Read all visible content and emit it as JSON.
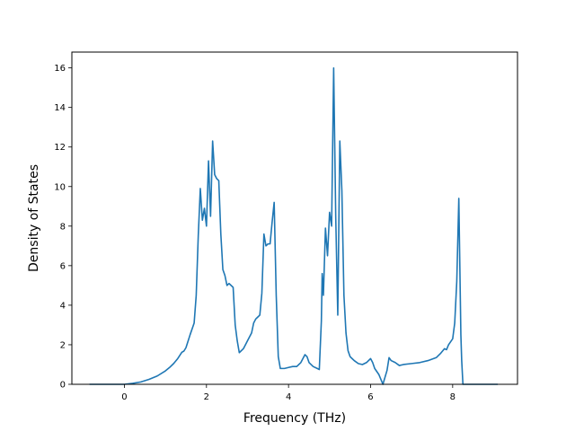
{
  "chart_data": {
    "type": "line",
    "title": "",
    "xlabel": "Frequency (THz)",
    "ylabel": "Density of States",
    "xlim": [
      -1.28,
      9.58
    ],
    "ylim": [
      0,
      16.8
    ],
    "xticks": [
      0,
      2,
      4,
      6,
      8
    ],
    "yticks": [
      0,
      2,
      4,
      6,
      8,
      10,
      12,
      14,
      16
    ],
    "grid": false,
    "legend": "none",
    "line_color": "#1f77b4",
    "series": [
      {
        "x": [
          -0.85,
          -0.5,
          -0.2,
          0.0,
          0.2,
          0.4,
          0.6,
          0.8,
          1.0,
          1.1,
          1.2,
          1.3,
          1.4,
          1.45,
          1.5,
          1.6,
          1.7,
          1.75,
          1.8,
          1.85,
          1.9,
          1.95,
          2.0,
          2.05,
          2.1,
          2.15,
          2.2,
          2.25,
          2.3,
          2.35,
          2.4,
          2.45,
          2.5,
          2.55,
          2.6,
          2.65,
          2.7,
          2.75,
          2.8,
          2.9,
          3.0,
          3.1,
          3.15,
          3.2,
          3.25,
          3.3,
          3.35,
          3.4,
          3.45,
          3.5,
          3.55,
          3.6,
          3.65,
          3.7,
          3.75,
          3.8,
          3.9,
          4.0,
          4.1,
          4.2,
          4.3,
          4.4,
          4.45,
          4.5,
          4.6,
          4.7,
          4.75,
          4.8,
          4.82,
          4.85,
          4.9,
          4.95,
          5.0,
          5.05,
          5.1,
          5.15,
          5.2,
          5.25,
          5.3,
          5.35,
          5.4,
          5.45,
          5.5,
          5.55,
          5.6,
          5.7,
          5.8,
          5.9,
          6.0,
          6.05,
          6.1,
          6.2,
          6.3,
          6.4,
          6.45,
          6.5,
          6.6,
          6.7,
          6.8,
          7.0,
          7.2,
          7.4,
          7.6,
          7.65,
          7.7,
          7.8,
          7.85,
          7.9,
          8.0,
          8.05,
          8.1,
          8.15,
          8.2,
          8.22,
          8.25,
          8.3,
          8.5,
          9.1
        ],
        "y": [
          0.0,
          0.0,
          0.0,
          0.0,
          0.05,
          0.12,
          0.25,
          0.42,
          0.68,
          0.85,
          1.05,
          1.3,
          1.62,
          1.68,
          1.85,
          2.5,
          3.1,
          4.5,
          7.5,
          9.9,
          8.3,
          8.9,
          8.0,
          11.3,
          8.5,
          12.3,
          10.6,
          10.4,
          10.3,
          7.6,
          5.8,
          5.5,
          5.0,
          5.1,
          5.0,
          4.9,
          3.0,
          2.2,
          1.6,
          1.8,
          2.2,
          2.6,
          3.1,
          3.3,
          3.4,
          3.5,
          4.6,
          7.6,
          7.0,
          7.1,
          7.1,
          8.2,
          9.2,
          4.5,
          1.4,
          0.8,
          0.8,
          0.85,
          0.9,
          0.9,
          1.1,
          1.5,
          1.4,
          1.1,
          0.9,
          0.8,
          0.75,
          3.2,
          5.6,
          4.5,
          7.9,
          6.5,
          8.7,
          8.0,
          16.0,
          8.5,
          3.5,
          12.3,
          9.8,
          4.5,
          2.6,
          1.7,
          1.4,
          1.3,
          1.2,
          1.05,
          1.0,
          1.1,
          1.3,
          1.1,
          0.8,
          0.5,
          0.0,
          0.7,
          1.35,
          1.2,
          1.1,
          0.95,
          1.0,
          1.05,
          1.1,
          1.2,
          1.35,
          1.45,
          1.55,
          1.8,
          1.75,
          2.0,
          2.3,
          3.1,
          5.2,
          9.4,
          2.5,
          1.2,
          0.0,
          0.0,
          0.0,
          0.0
        ]
      }
    ]
  }
}
